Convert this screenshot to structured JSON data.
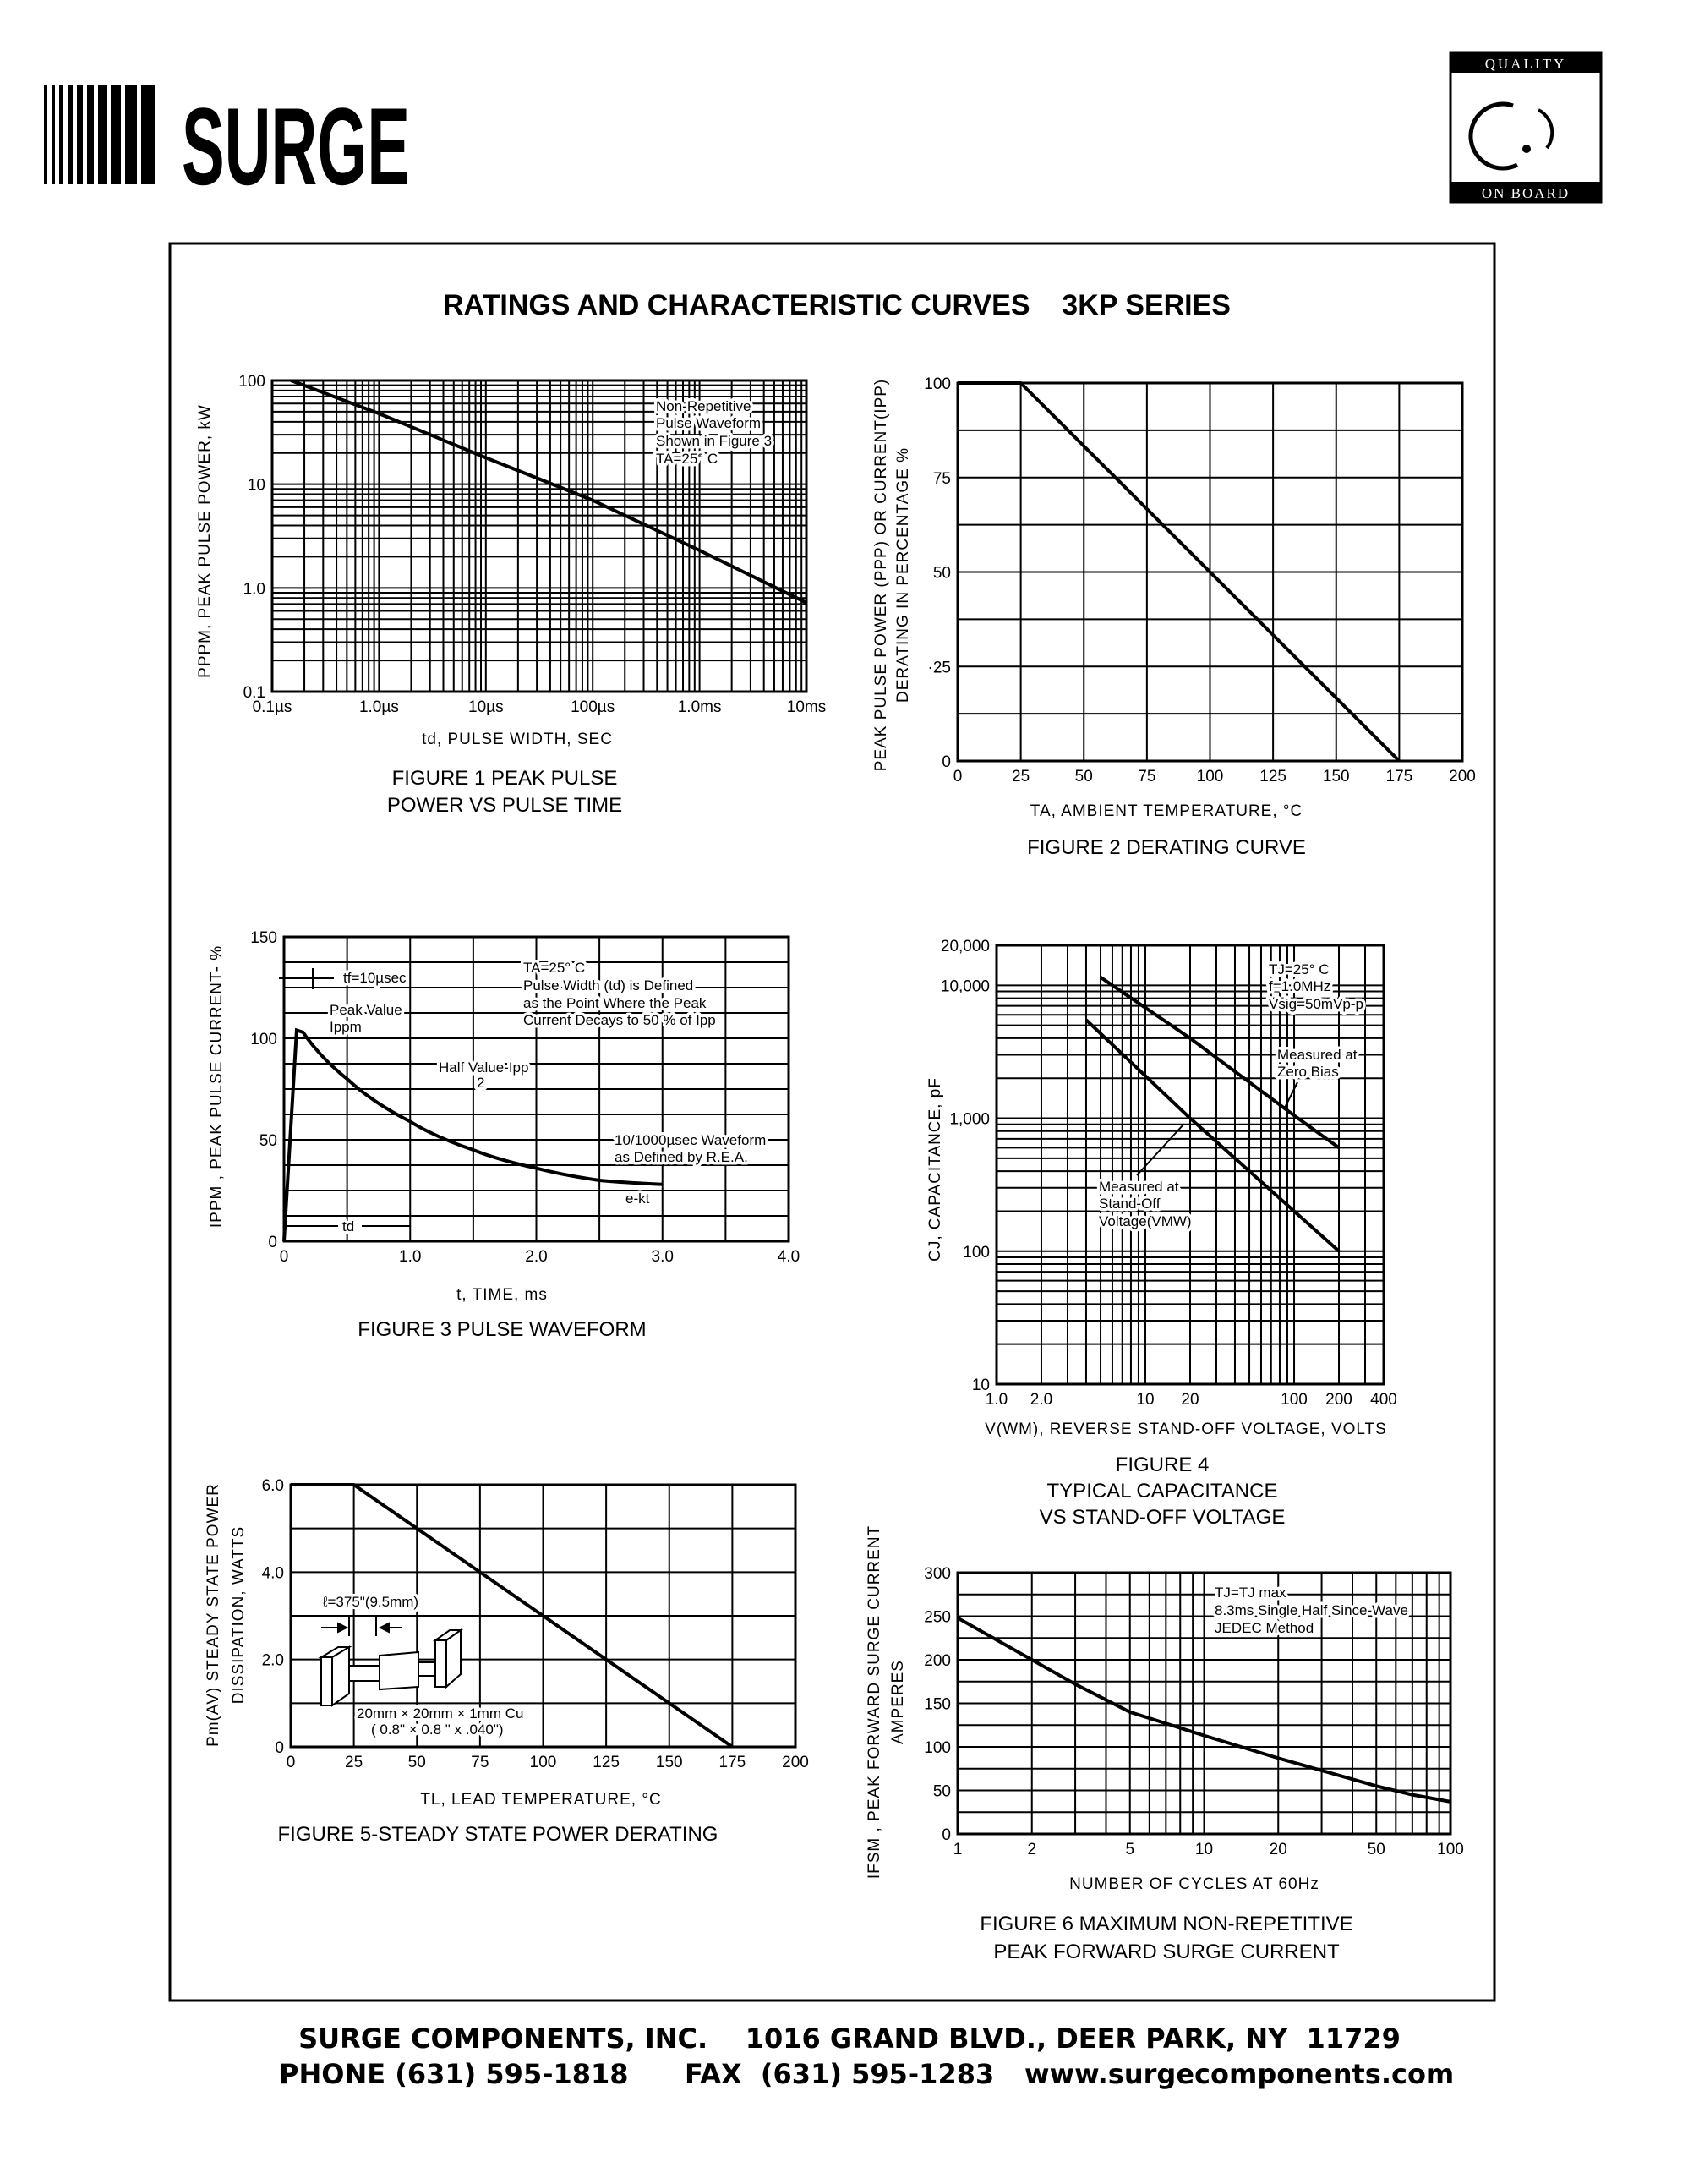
{
  "header": {
    "logo_text": "SURGE",
    "badge_top": "QUALITY",
    "badge_bottom": "ON BOARD"
  },
  "title": "RATINGS AND CHARACTERISTIC CURVES    3KP SERIES",
  "footer": {
    "line1": "SURGE COMPONENTS, INC.    1016 GRAND BLVD., DEER PARK, NY  11729",
    "phone": "PHONE (631) 595-1818",
    "fax": "FAX  (631) 595-1283",
    "web": "www.surgecomponents.com"
  },
  "chart_data": [
    {
      "type": "line",
      "caption": [
        "FIGURE 1 PEAK PULSE",
        "POWER VS PULSE TIME"
      ],
      "xlabel": "td, PULSE  WIDTH, SEC",
      "ylabel": [
        "PPPM, PEAK  PULSE  POWER, kW"
      ],
      "xscale": "log",
      "yscale": "log",
      "xlim": [
        1e-07,
        0.01
      ],
      "ylim": [
        0.1,
        100
      ],
      "grid": true,
      "x_ticks": [
        {
          "value": 1e-07,
          "label": "0.1µs"
        },
        {
          "value": 1e-06,
          "label": "1.0µs"
        },
        {
          "value": 1e-05,
          "label": "10µs"
        },
        {
          "value": 0.0001,
          "label": "100µs"
        },
        {
          "value": 0.001,
          "label": "1.0ms"
        },
        {
          "value": 0.01,
          "label": "10ms"
        }
      ],
      "y_ticks": [
        {
          "value": 0.1,
          "label": "0.1"
        },
        {
          "value": 1,
          "label": "1.0"
        },
        {
          "value": 10,
          "label": "10"
        },
        {
          "value": 100,
          "label": "100"
        }
      ],
      "series": [
        {
          "x": [
            1.5e-07,
            1e-06,
            1e-05,
            0.0001,
            0.001,
            0.01
          ],
          "y": [
            100,
            48,
            18,
            7,
            2.3,
            0.72
          ]
        }
      ],
      "annotations": [
        "Non-Repetitive",
        "Pulse Waveform",
        "Shown in Figure 3",
        "TA=25° C"
      ]
    },
    {
      "type": "line",
      "caption": [
        "FIGURE 2 DERATING CURVE"
      ],
      "xlabel": "TA, AMBIENT   TEMPERATURE, °C",
      "ylabel": [
        "PEAK PULSE  POWER (PPP) OR CURRENT(IPP)",
        "DERATING IN PERCENTAGE %"
      ],
      "xscale": "linear",
      "yscale": "linear",
      "xlim": [
        0,
        200
      ],
      "ylim": [
        0,
        100
      ],
      "grid": true,
      "x_ticks": [
        {
          "value": 0,
          "label": "0"
        },
        {
          "value": 25,
          "label": "25"
        },
        {
          "value": 50,
          "label": "50"
        },
        {
          "value": 75,
          "label": "75"
        },
        {
          "value": 100,
          "label": "100"
        },
        {
          "value": 125,
          "label": "125"
        },
        {
          "value": 150,
          "label": "150"
        },
        {
          "value": 175,
          "label": "175"
        },
        {
          "value": 200,
          "label": "200"
        }
      ],
      "y_ticks": [
        {
          "value": 0,
          "label": "0"
        },
        {
          "value": 25,
          "label": "·25"
        },
        {
          "value": 50,
          "label": "50"
        },
        {
          "value": 75,
          "label": "75"
        },
        {
          "value": 100,
          "label": "100"
        }
      ],
      "series": [
        {
          "x": [
            0,
            25,
            175
          ],
          "y": [
            100,
            100,
            0
          ]
        }
      ],
      "annotations": []
    },
    {
      "type": "line",
      "caption": [
        "FIGURE 3  PULSE WAVEFORM"
      ],
      "xlabel": "t, TIME, ms",
      "ylabel": [
        "IPPM , PEAK  PULSE  CURRENT- %"
      ],
      "xscale": "linear",
      "yscale": "linear",
      "xlim": [
        0,
        4
      ],
      "ylim": [
        0,
        150
      ],
      "grid": true,
      "x_ticks": [
        {
          "value": 0,
          "label": "0"
        },
        {
          "value": 1,
          "label": "1.0"
        },
        {
          "value": 2,
          "label": "2.0"
        },
        {
          "value": 3,
          "label": "3.0"
        },
        {
          "value": 4,
          "label": "4.0"
        }
      ],
      "y_ticks": [
        {
          "value": 0,
          "label": "0"
        },
        {
          "value": 50,
          "label": "50"
        },
        {
          "value": 100,
          "label": "100"
        },
        {
          "value": 150,
          "label": "150"
        }
      ],
      "series": [
        {
          "x": [
            0,
            0.1,
            0.15,
            0.5,
            1.0,
            1.5,
            2.0,
            2.5,
            3.0
          ],
          "y": [
            0,
            104,
            103,
            80,
            59,
            45,
            36,
            30,
            28
          ]
        }
      ],
      "annotations": [
        "tf=10µsec",
        "Peak Value",
        "Ippm",
        "Half Value-Ipp",
        "2",
        "TA=25° C",
        "Pulse Width (td) is Defined",
        "as the Point Where the Peak",
        "Current Decays to 50 % of Ipp",
        "10/1000µsec Waveform",
        "as Defined by R.E.A.",
        "e-kt",
        "td"
      ]
    },
    {
      "type": "line",
      "caption": [
        "FIGURE 4",
        "TYPICAL CAPACITANCE",
        "VS STAND-OFF VOLTAGE"
      ],
      "xlabel": "V(WM), REVERSE  STAND-OFF  VOLTAGE, VOLTS",
      "ylabel": [
        "CJ, CAPACITANCE, pF"
      ],
      "xscale": "log",
      "yscale": "log",
      "xlim": [
        1,
        400
      ],
      "ylim": [
        10,
        20000
      ],
      "grid": true,
      "x_ticks": [
        {
          "value": 1,
          "label": "1.0"
        },
        {
          "value": 2,
          "label": "2.0"
        },
        {
          "value": 10,
          "label": "10"
        },
        {
          "value": 20,
          "label": "20"
        },
        {
          "value": 100,
          "label": "100"
        },
        {
          "value": 200,
          "label": "200"
        },
        {
          "value": 400,
          "label": "400"
        }
      ],
      "y_ticks": [
        {
          "value": 10,
          "label": "10"
        },
        {
          "value": 100,
          "label": "100"
        },
        {
          "value": 1000,
          "label": "1,000"
        },
        {
          "value": 10000,
          "label": "10,000"
        },
        {
          "value": 20000,
          "label": "20,000"
        }
      ],
      "series": [
        {
          "name": "Measured at Zero Bias",
          "x": [
            5,
            20,
            100,
            200
          ],
          "y": [
            11500,
            4000,
            1050,
            600
          ]
        },
        {
          "name": "Measured at Stand-Off Voltage(VMW)",
          "x": [
            4,
            20,
            100,
            200
          ],
          "y": [
            5500,
            1000,
            200,
            100
          ]
        }
      ],
      "annotations": [
        "TJ=25° C",
        "f=1.0MHz",
        "Vsig=50mVp-p",
        "Measured at",
        "Zero Bias",
        "Measured at",
        "Stand-Off",
        "Voltage(VMW)"
      ]
    },
    {
      "type": "line",
      "caption": [
        "FIGURE 5-STEADY STATE POWER DERATING"
      ],
      "xlabel": "TL, LEAD  TEMPERATURE, °C",
      "ylabel": [
        "Pm(AV) STEADY STATE POWER",
        "DISSIPATION, WATTS"
      ],
      "xscale": "linear",
      "yscale": "linear",
      "xlim": [
        0,
        200
      ],
      "ylim": [
        0,
        6
      ],
      "grid": true,
      "x_ticks": [
        {
          "value": 0,
          "label": "0"
        },
        {
          "value": 25,
          "label": "25"
        },
        {
          "value": 50,
          "label": "50"
        },
        {
          "value": 75,
          "label": "75"
        },
        {
          "value": 100,
          "label": "100"
        },
        {
          "value": 125,
          "label": "125"
        },
        {
          "value": 150,
          "label": "150"
        },
        {
          "value": 175,
          "label": "175"
        },
        {
          "value": 200,
          "label": "200"
        }
      ],
      "y_ticks": [
        {
          "value": 0,
          "label": "0"
        },
        {
          "value": 2,
          "label": "2.0"
        },
        {
          "value": 4,
          "label": "4.0"
        },
        {
          "value": 6,
          "label": "6.0"
        }
      ],
      "series": [
        {
          "x": [
            0,
            25,
            175
          ],
          "y": [
            6,
            6,
            0
          ]
        }
      ],
      "annotations": [
        "ℓ=375\"(9.5mm)",
        "20mm × 20mm × 1mm Cu",
        "( 0.8\" × 0.8 \" x .040\")"
      ]
    },
    {
      "type": "line",
      "caption": [
        "FIGURE 6 MAXIMUM NON-REPETITIVE",
        "PEAK FORWARD SURGE CURRENT"
      ],
      "xlabel": "NUMBER  OF  CYCLES  AT  60Hz",
      "ylabel": [
        "IFSM , PEAK  FORWARD  SURGE  CURRENT",
        "AMPERES"
      ],
      "xscale": "log",
      "yscale": "linear",
      "xlim": [
        1,
        100
      ],
      "ylim": [
        0,
        300
      ],
      "grid": true,
      "x_ticks": [
        {
          "value": 1,
          "label": "1"
        },
        {
          "value": 2,
          "label": "2"
        },
        {
          "value": 5,
          "label": "5"
        },
        {
          "value": 10,
          "label": "10"
        },
        {
          "value": 20,
          "label": "20"
        },
        {
          "value": 50,
          "label": "50"
        },
        {
          "value": 100,
          "label": "100"
        }
      ],
      "y_ticks": [
        {
          "value": 0,
          "label": "0"
        },
        {
          "value": 50,
          "label": "50"
        },
        {
          "value": 100,
          "label": "100"
        },
        {
          "value": 150,
          "label": "150"
        },
        {
          "value": 200,
          "label": "200"
        },
        {
          "value": 250,
          "label": "250"
        },
        {
          "value": 300,
          "label": "300"
        }
      ],
      "series": [
        {
          "x": [
            1,
            2,
            3,
            5,
            10,
            20,
            50,
            70,
            100
          ],
          "y": [
            248,
            200,
            172,
            140,
            113,
            87,
            55,
            45,
            37
          ]
        }
      ],
      "annotations": [
        "TJ=TJ max",
        "8.3ms Single Half Since-Wave",
        "JEDEC Method"
      ]
    }
  ]
}
